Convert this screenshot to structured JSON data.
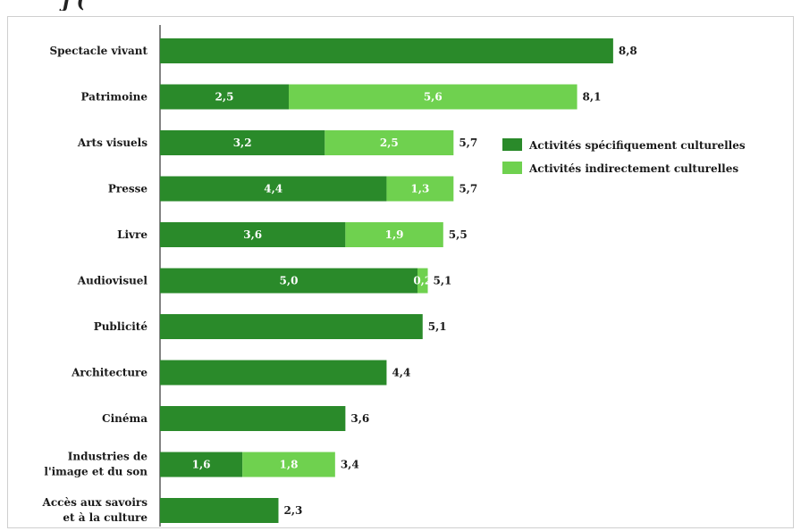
{
  "title_partial": "j (",
  "chart_data": {
    "type": "bar",
    "orientation": "horizontal",
    "stacked": true,
    "categories": [
      [
        "Spectacle vivant"
      ],
      [
        "Patrimoine"
      ],
      [
        "Arts visuels"
      ],
      [
        "Presse"
      ],
      [
        "Livre"
      ],
      [
        "Audiovisuel"
      ],
      [
        "Publicité"
      ],
      [
        "Architecture"
      ],
      [
        "Cinéma"
      ],
      [
        "Industries de",
        "l'image et du son"
      ],
      [
        "Accès aux savoirs",
        "et à la culture"
      ]
    ],
    "series": [
      {
        "name": "Activités spécifiquement culturelles",
        "color": "#2a8a2a",
        "values": [
          8.8,
          2.5,
          3.2,
          4.4,
          3.6,
          5.0,
          5.1,
          4.4,
          3.6,
          1.6,
          2.3
        ],
        "labels": [
          null,
          "2,5",
          "3,2",
          "4,4",
          "3,6",
          "5,0",
          null,
          null,
          null,
          "1,6",
          null
        ]
      },
      {
        "name": "Activités indirectement culturelles",
        "color": "#6fd14f",
        "values": [
          0,
          5.6,
          2.5,
          1.3,
          1.9,
          0.2,
          0,
          0,
          0,
          1.8,
          0
        ],
        "labels": [
          null,
          "5,6",
          "2,5",
          "1,3",
          "1,9",
          "0,2",
          null,
          null,
          null,
          "1,8",
          null
        ]
      }
    ],
    "totals": [
      "8,8",
      "8,1",
      "5,7",
      "5,7",
      "5,5",
      "5,1",
      "5,1",
      "4,4",
      "3,6",
      "3,4",
      "2,3"
    ],
    "xlim": [
      0,
      8.8
    ],
    "legend_position": "right",
    "grid": false
  }
}
